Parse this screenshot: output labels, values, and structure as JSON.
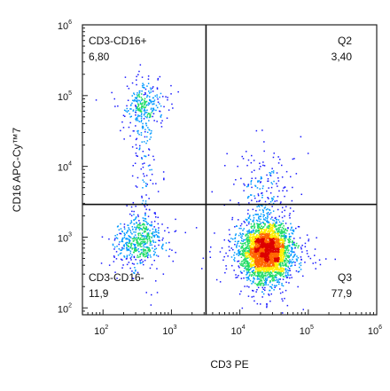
{
  "chart_data": {
    "type": "scatter",
    "subtype": "flow-cytometry-density-dot-plot",
    "title": "",
    "xlabel": "CD3 PE",
    "ylabel": "CD16 APC-Cy™7",
    "x_scale": "log",
    "y_scale": "log",
    "xlim": [
      50,
      1000000
    ],
    "ylim": [
      80,
      1000000
    ],
    "x_ticks": [
      {
        "value": 100,
        "base": "10",
        "exp": "2"
      },
      {
        "value": 1000,
        "base": "10",
        "exp": "3"
      },
      {
        "value": 10000,
        "base": "10",
        "exp": "4"
      },
      {
        "value": 100000,
        "base": "10",
        "exp": "5"
      },
      {
        "value": 1000000,
        "base": "10",
        "exp": "6"
      }
    ],
    "y_ticks": [
      {
        "value": 100,
        "base": "10",
        "exp": "2"
      },
      {
        "value": 1000,
        "base": "10",
        "exp": "3"
      },
      {
        "value": 10000,
        "base": "10",
        "exp": "4"
      },
      {
        "value": 100000,
        "base": "10",
        "exp": "5"
      },
      {
        "value": 1000000,
        "base": "10",
        "exp": "6"
      }
    ],
    "gates": {
      "x_threshold": 3200,
      "y_threshold": 2900
    },
    "quadrants": [
      {
        "id": "top-left",
        "name": "CD3-CD16+",
        "value": "6,80"
      },
      {
        "id": "top-right",
        "name": "Q2",
        "value": "3,40"
      },
      {
        "id": "bottom-left",
        "name": "CD3-CD16-",
        "value": "11,9"
      },
      {
        "id": "bottom-right",
        "name": "Q3",
        "value": "77,9"
      }
    ],
    "populations": [
      {
        "name": "",
        "center_x": 380,
        "center_y": 75000,
        "spread_x": 0.13,
        "spread_y": 0.15,
        "weight": 0.068
      },
      {
        "name": "",
        "center_x": 350,
        "center_y": 900,
        "spread_x": 0.16,
        "spread_y": 0.17,
        "weight": 0.119
      },
      {
        "name": "",
        "center_x": 24000,
        "center_y": 650,
        "spread_x": 0.17,
        "spread_y": 0.2,
        "weight": 0.779
      },
      {
        "name": "",
        "center_x": 20000,
        "center_y": 6000,
        "spread_x": 0.22,
        "spread_y": 0.25,
        "weight": 0.034
      }
    ],
    "colormap": [
      "#1a1aff",
      "#0099ff",
      "#22dd66",
      "#ffee00",
      "#ff6600",
      "#dd0000"
    ]
  }
}
